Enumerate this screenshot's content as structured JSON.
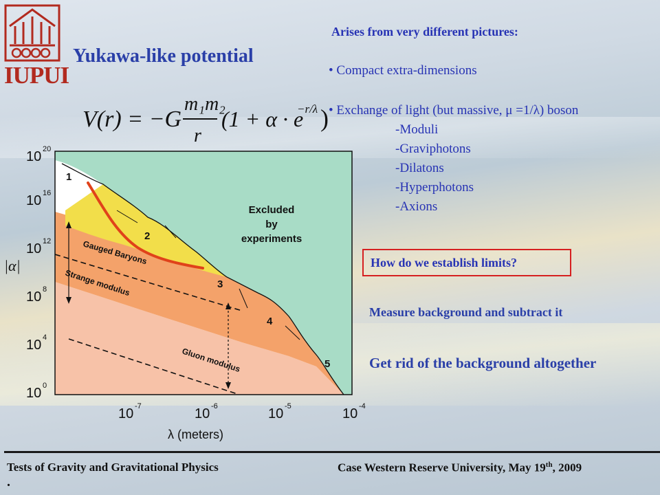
{
  "logo": {
    "text": "IUPUI"
  },
  "title": "Yukawa-like potential",
  "equation": {
    "lhs": "V(r) = −G",
    "numerator": "m₁m₂",
    "denominator": "r",
    "bracket_open": "(1 + α · e",
    "exponent": "−r/λ",
    "bracket_close": ")"
  },
  "right_panel": {
    "heading": "Arises from very different pictures:",
    "bullet1": "• Compact extra-dimensions",
    "bullet2": "• Exchange of light (but massive, μ =1/λ) boson",
    "subitems": [
      "-Moduli",
      "-Graviphotons",
      "-Dilatons",
      "-Hyperphotons",
      "-Axions"
    ],
    "limits_question": "How do we establish limits?",
    "measure": "Measure background and subtract it",
    "get_rid": "Get rid of the background altogether"
  },
  "chart_data": {
    "type": "area",
    "xlabel": "λ (meters)",
    "ylabel": "|α|",
    "x_scale": "log",
    "y_scale": "log",
    "xlim": [
      1e-08,
      0.0001
    ],
    "ylim": [
      1,
      1e+20
    ],
    "x_ticks": [
      {
        "base": "10",
        "exp": "-7"
      },
      {
        "base": "10",
        "exp": "-6"
      },
      {
        "base": "10",
        "exp": "-5"
      },
      {
        "base": "10",
        "exp": "-4"
      }
    ],
    "y_ticks": [
      {
        "base": "10",
        "exp": "0"
      },
      {
        "base": "10",
        "exp": "4"
      },
      {
        "base": "10",
        "exp": "8"
      },
      {
        "base": "10",
        "exp": "12"
      },
      {
        "base": "10",
        "exp": "16"
      },
      {
        "base": "10",
        "exp": "20"
      }
    ],
    "regions": [
      {
        "name": "Excluded by experiments",
        "label_lines": [
          "Excluded",
          "by",
          "experiments"
        ],
        "color": "#a8dcc6"
      },
      {
        "name": "Gauged Baryons",
        "color": "#f2de4a"
      },
      {
        "name": "Strange modulus",
        "color": "#f4a26a"
      },
      {
        "name": "Gluon modulus",
        "color": "#f7c2a8"
      }
    ],
    "curve_labels": [
      "1",
      "2",
      "3",
      "4",
      "5"
    ],
    "highlight_curve_color": "#e0421a"
  },
  "footer": {
    "left": "Tests of Gravity and Gravitational Physics",
    "right_main": "Case Western Reserve University, May 19",
    "right_sup": "th",
    "right_end": ", 2009",
    "dot": "."
  }
}
